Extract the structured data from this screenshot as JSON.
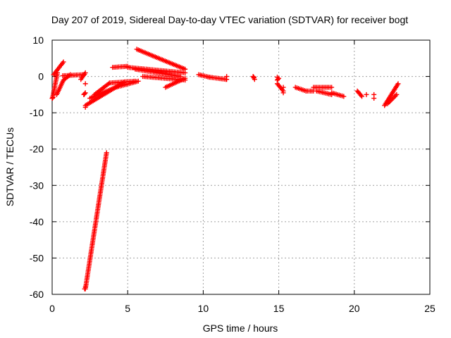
{
  "chart_data": {
    "type": "scatter",
    "title": "Day 207 of 2019, Sidereal Day-to-day VTEC variation (SDTVAR) for receiver bogt",
    "xlabel": "GPS time / hours",
    "ylabel": "SDTVAR / TECUs",
    "xlim": [
      0,
      25
    ],
    "ylim": [
      -60,
      10
    ],
    "xticks": [
      0,
      5,
      10,
      15,
      20,
      25
    ],
    "yticks": [
      -60,
      -50,
      -40,
      -30,
      -20,
      -10,
      0,
      10
    ],
    "grid": true,
    "marker": "+",
    "color": "#ff0000",
    "series": [
      {
        "segments": [
          {
            "x0": 0.02,
            "y0": -6.0,
            "x1": 0.35,
            "y1": 1.0
          },
          {
            "x0": 0.1,
            "y0": 0.5,
            "x1": 0.75,
            "y1": 4.0
          },
          {
            "x0": 0.3,
            "y0": -5.0,
            "x1": 0.75,
            "y1": -1.0
          },
          {
            "x0": 0.75,
            "y0": -1.0,
            "x1": 1.2,
            "y1": 0.5
          },
          {
            "x0": 0.7,
            "y0": 0.2,
            "x1": 2.1,
            "y1": 0.5
          },
          {
            "x0": 1.9,
            "y0": -0.8,
            "x1": 2.2,
            "y1": 1.0
          },
          {
            "x0": 2.1,
            "y0": -5.0,
            "x1": 2.2,
            "y1": -4.5
          },
          {
            "x0": 2.2,
            "y0": -8.0,
            "x1": 4.8,
            "y1": -1.5
          },
          {
            "x0": 2.5,
            "y0": -6.0,
            "x1": 4.2,
            "y1": -3.0
          },
          {
            "x0": 4.2,
            "y0": -3.0,
            "x1": 5.7,
            "y1": -1.3
          },
          {
            "x0": 2.8,
            "y0": -5.0,
            "x1": 3.8,
            "y1": -1.8
          },
          {
            "x0": 3.8,
            "y0": -1.8,
            "x1": 5.5,
            "y1": -1.3
          },
          {
            "x0": 4.0,
            "y0": 2.5,
            "x1": 5.0,
            "y1": 2.8
          },
          {
            "x0": 5.0,
            "y0": 2.5,
            "x1": 8.8,
            "y1": 1.0
          },
          {
            "x0": 5.5,
            "y0": 2.0,
            "x1": 8.5,
            "y1": 0.0
          },
          {
            "x0": 5.6,
            "y0": 7.5,
            "x1": 8.8,
            "y1": 2.0
          },
          {
            "x0": 6.0,
            "y0": 0.0,
            "x1": 8.8,
            "y1": -1.0
          },
          {
            "x0": 7.5,
            "y0": -3.0,
            "x1": 8.8,
            "y1": -0.5
          },
          {
            "x0": 9.7,
            "y0": 0.5,
            "x1": 10.4,
            "y1": -0.2
          },
          {
            "x0": 10.4,
            "y0": -0.2,
            "x1": 11.5,
            "y1": -0.8
          },
          {
            "x0": 13.3,
            "y0": 0.0,
            "x1": 13.4,
            "y1": -0.8
          },
          {
            "x0": 14.9,
            "y0": -1.0,
            "x1": 15.0,
            "y1": -0.5
          },
          {
            "x0": 14.9,
            "y0": -2.0,
            "x1": 15.3,
            "y1": -4.0
          },
          {
            "x0": 16.1,
            "y0": -3.0,
            "x1": 16.8,
            "y1": -4.0
          },
          {
            "x0": 16.8,
            "y0": -4.0,
            "x1": 17.3,
            "y1": -4.0
          },
          {
            "x0": 17.3,
            "y0": -3.0,
            "x1": 18.5,
            "y1": -3.0
          },
          {
            "x0": 17.5,
            "y0": -4.0,
            "x1": 18.5,
            "y1": -5.0
          },
          {
            "x0": 18.5,
            "y0": -4.5,
            "x1": 19.3,
            "y1": -5.5
          },
          {
            "x0": 20.2,
            "y0": -4.0,
            "x1": 20.5,
            "y1": -5.5
          },
          {
            "x0": 22.0,
            "y0": -8.0,
            "x1": 22.9,
            "y1": -2.0
          },
          {
            "x0": 22.2,
            "y0": -7.5,
            "x1": 22.8,
            "y1": -5.0
          },
          {
            "x0": 2.2,
            "y0": -58.5,
            "x1": 3.6,
            "y1": -21.0
          }
        ]
      },
      {
        "points": [
          [
            0.0,
            -6.0
          ],
          [
            0.05,
            -5.8
          ],
          [
            2.2,
            -8.5
          ],
          [
            2.2,
            -2.0
          ],
          [
            2.1,
            -5.0
          ],
          [
            2.15,
            -58.5
          ],
          [
            2.2,
            -58.0
          ],
          [
            11.55,
            0.0
          ],
          [
            11.55,
            -0.8
          ],
          [
            13.35,
            -0.2
          ],
          [
            14.9,
            -0.2
          ],
          [
            15.3,
            -3.0
          ],
          [
            15.3,
            -4.5
          ],
          [
            20.8,
            -5.0
          ],
          [
            21.3,
            -5.0
          ],
          [
            21.3,
            -6.0
          ]
        ]
      }
    ]
  }
}
